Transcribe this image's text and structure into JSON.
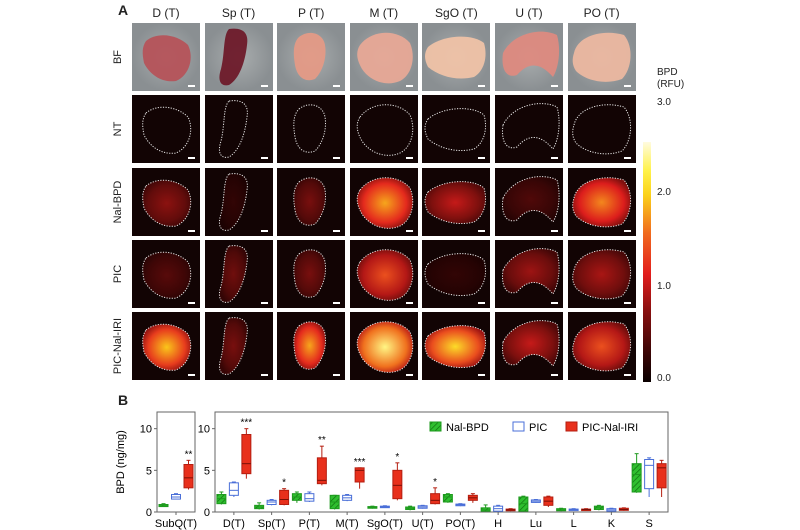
{
  "panel_a": {
    "label": "A",
    "columns": [
      "D (T)",
      "Sp (T)",
      "P (T)",
      "M (T)",
      "SgO (T)",
      "U (T)",
      "PO (T)"
    ],
    "rows": [
      "BF",
      "NT",
      "Nal-BPD",
      "PIC",
      "PIC-Nal-IRI"
    ],
    "colorbar": {
      "title_line1": "BPD",
      "title_line2": "(RFU)",
      "ticks": [
        "3.0",
        "2.0",
        "1.0",
        "0.0"
      ]
    },
    "intensity": [
      [
        0,
        0,
        0,
        0,
        0,
        0,
        0
      ],
      [
        0.02,
        0.02,
        0.02,
        0.02,
        0.02,
        0.02,
        0.02
      ],
      [
        0.35,
        0.12,
        0.3,
        0.75,
        0.45,
        0.2,
        0.7
      ],
      [
        0.22,
        0.28,
        0.3,
        0.6,
        0.12,
        0.38,
        0.4
      ],
      [
        0.8,
        0.3,
        0.75,
        0.95,
        0.85,
        0.45,
        0.6
      ]
    ]
  },
  "panel_b": {
    "label": "B",
    "ylabel": "BPD (ng/mg)",
    "legend": [
      "Nal-BPD",
      "PIC",
      "PIC-Nal-IRI"
    ]
  },
  "chart_data": [
    {
      "type": "box",
      "title": "",
      "xlabel": "",
      "ylabel": "BPD (ng/mg)",
      "ylim": [
        0,
        12
      ],
      "yticks": [
        0,
        5,
        10
      ],
      "categories": [
        "SubQ(T)"
      ],
      "series": [
        {
          "name": "Nal-BPD",
          "color": "#2fbf2f",
          "boxes": [
            {
              "min": 0.6,
              "q1": 0.65,
              "median": 0.75,
              "q3": 0.9,
              "max": 1.0
            }
          ]
        },
        {
          "name": "PIC",
          "color": "#4a6fd8",
          "boxes": [
            {
              "min": 1.5,
              "q1": 1.55,
              "median": 1.8,
              "q3": 2.1,
              "max": 2.2
            }
          ]
        },
        {
          "name": "PIC-Nal-IRI",
          "color": "#e8301c",
          "boxes": [
            {
              "min": 2.7,
              "q1": 2.9,
              "median": 4.1,
              "q3": 5.7,
              "max": 6.2
            }
          ]
        }
      ],
      "significance": {
        "SubQ(T)": "**"
      }
    },
    {
      "type": "box",
      "title": "",
      "xlabel": "",
      "ylabel": "",
      "ylim": [
        0,
        12
      ],
      "yticks": [
        0,
        5,
        10
      ],
      "legend_position": "upper right",
      "categories": [
        "D(T)",
        "Sp(T)",
        "P(T)",
        "M(T)",
        "SgO(T)",
        "U(T)",
        "PO(T)",
        "H",
        "Lu",
        "L",
        "K",
        "S"
      ],
      "series": [
        {
          "name": "Nal-BPD",
          "color": "#2fbf2f",
          "boxes": [
            {
              "min": 0.9,
              "q1": 1.0,
              "median": 1.6,
              "q3": 2.1,
              "max": 2.4
            },
            {
              "min": 0.3,
              "q1": 0.4,
              "median": 0.6,
              "q3": 0.8,
              "max": 1.1
            },
            {
              "min": 1.1,
              "q1": 1.4,
              "median": 1.8,
              "q3": 2.2,
              "max": 2.4
            },
            {
              "min": 0.3,
              "q1": 0.4,
              "median": 1.2,
              "q3": 2.0,
              "max": 2.0
            },
            {
              "min": 0.4,
              "q1": 0.45,
              "median": 0.55,
              "q3": 0.65,
              "max": 0.7
            },
            {
              "min": 0.2,
              "q1": 0.3,
              "median": 0.45,
              "q3": 0.6,
              "max": 0.7
            },
            {
              "min": 1.1,
              "q1": 1.2,
              "median": 1.8,
              "q3": 2.1,
              "max": 2.2
            },
            {
              "min": 0.05,
              "q1": 0.1,
              "median": 0.25,
              "q3": 0.5,
              "max": 0.85
            },
            {
              "min": 0.05,
              "q1": 0.1,
              "median": 1.0,
              "q3": 1.8,
              "max": 1.9
            },
            {
              "min": 0.1,
              "q1": 0.15,
              "median": 0.25,
              "q3": 0.4,
              "max": 0.45
            },
            {
              "min": 0.2,
              "q1": 0.3,
              "median": 0.5,
              "q3": 0.7,
              "max": 0.8
            },
            {
              "min": 2.3,
              "q1": 2.4,
              "median": 4.5,
              "q3": 5.8,
              "max": 7.0
            }
          ]
        },
        {
          "name": "PIC",
          "color": "#4a6fd8",
          "boxes": [
            {
              "min": 1.8,
              "q1": 2.0,
              "median": 2.6,
              "q3": 3.5,
              "max": 3.6
            },
            {
              "min": 0.8,
              "q1": 0.9,
              "median": 1.2,
              "q3": 1.4,
              "max": 1.5
            },
            {
              "min": 1.2,
              "q1": 1.3,
              "median": 1.6,
              "q3": 2.2,
              "max": 2.4
            },
            {
              "min": 1.3,
              "q1": 1.4,
              "median": 1.7,
              "q3": 2.0,
              "max": 2.1
            },
            {
              "min": 0.5,
              "q1": 0.55,
              "median": 0.6,
              "q3": 0.7,
              "max": 0.75
            },
            {
              "min": 0.4,
              "q1": 0.45,
              "median": 0.6,
              "q3": 0.75,
              "max": 0.8
            },
            {
              "min": 0.7,
              "q1": 0.75,
              "median": 0.85,
              "q3": 0.95,
              "max": 1.0
            },
            {
              "min": 0.0,
              "q1": 0.1,
              "median": 0.4,
              "q3": 0.7,
              "max": 0.8
            },
            {
              "min": 1.1,
              "q1": 1.15,
              "median": 1.3,
              "q3": 1.45,
              "max": 1.5
            },
            {
              "min": 0.15,
              "q1": 0.2,
              "median": 0.3,
              "q3": 0.35,
              "max": 0.4
            },
            {
              "min": 0.05,
              "q1": 0.1,
              "median": 0.25,
              "q3": 0.4,
              "max": 0.45
            },
            {
              "min": 1.8,
              "q1": 2.8,
              "median": 5.6,
              "q3": 6.3,
              "max": 6.5
            }
          ]
        },
        {
          "name": "PIC-Nal-IRI",
          "color": "#e8301c",
          "boxes": [
            {
              "min": 4.0,
              "q1": 4.6,
              "median": 5.8,
              "q3": 9.3,
              "max": 10.0
            },
            {
              "min": 0.8,
              "q1": 0.9,
              "median": 1.5,
              "q3": 2.6,
              "max": 2.8
            },
            {
              "min": 3.2,
              "q1": 3.4,
              "median": 3.8,
              "q3": 6.5,
              "max": 7.9
            },
            {
              "min": 2.8,
              "q1": 3.6,
              "median": 5.0,
              "q3": 5.3,
              "max": 5.3
            },
            {
              "min": 1.4,
              "q1": 1.6,
              "median": 3.2,
              "q3": 5.0,
              "max": 5.9
            },
            {
              "min": 0.9,
              "q1": 1.0,
              "median": 1.4,
              "q3": 2.2,
              "max": 2.9
            },
            {
              "min": 1.1,
              "q1": 1.4,
              "median": 1.7,
              "q3": 2.0,
              "max": 2.2
            },
            {
              "min": 0.1,
              "q1": 0.15,
              "median": 0.25,
              "q3": 0.35,
              "max": 0.4
            },
            {
              "min": 0.6,
              "q1": 0.8,
              "median": 1.3,
              "q3": 1.8,
              "max": 1.9
            },
            {
              "min": 0.2,
              "q1": 0.25,
              "median": 0.3,
              "q3": 0.35,
              "max": 0.4
            },
            {
              "min": 0.15,
              "q1": 0.2,
              "median": 0.3,
              "q3": 0.45,
              "max": 0.5
            },
            {
              "min": 1.8,
              "q1": 2.9,
              "median": 5.3,
              "q3": 5.8,
              "max": 6.2
            }
          ]
        }
      ],
      "significance": {
        "D(T)": "***",
        "Sp(T)": "*",
        "P(T)": "**",
        "M(T)": "***",
        "SgO(T)": "*",
        "U(T)": "*"
      }
    }
  ]
}
